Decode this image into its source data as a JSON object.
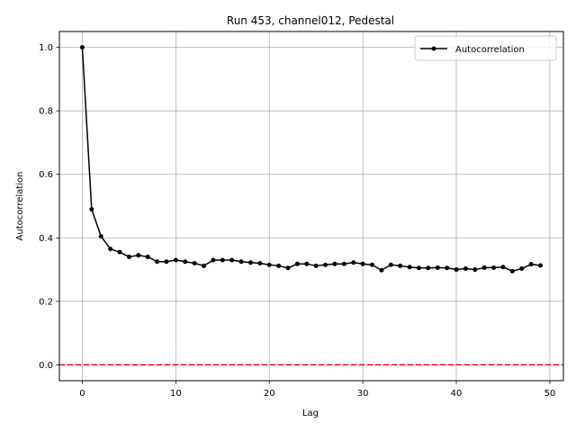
{
  "chart_data": {
    "type": "line",
    "title": "Run 453, channel012, Pedestal",
    "xlabel": "Lag",
    "ylabel": "Autocorrelation",
    "xlim": [
      -2.45,
      51.45
    ],
    "ylim": [
      -0.05,
      1.05
    ],
    "xticks": [
      0,
      10,
      20,
      30,
      40,
      50
    ],
    "yticks": [
      0.0,
      0.2,
      0.4,
      0.6,
      0.8,
      1.0
    ],
    "xtick_labels": [
      "0",
      "10",
      "20",
      "30",
      "40",
      "50"
    ],
    "ytick_labels": [
      "0.0",
      "0.2",
      "0.4",
      "0.6",
      "0.8",
      "1.0"
    ],
    "grid": true,
    "legend_position": "top-right",
    "series": [
      {
        "name": "Autocorrelation",
        "color": "#000000",
        "marker": "circle",
        "x": [
          0,
          1,
          2,
          3,
          4,
          5,
          6,
          7,
          8,
          9,
          10,
          11,
          12,
          13,
          14,
          15,
          16,
          17,
          18,
          19,
          20,
          21,
          22,
          23,
          24,
          25,
          26,
          27,
          28,
          29,
          30,
          31,
          32,
          33,
          34,
          35,
          36,
          37,
          38,
          39,
          40,
          41,
          42,
          43,
          44,
          45,
          46,
          47,
          48,
          49
        ],
        "y": [
          1.0,
          0.49,
          0.405,
          0.365,
          0.355,
          0.34,
          0.345,
          0.34,
          0.325,
          0.325,
          0.33,
          0.325,
          0.32,
          0.312,
          0.33,
          0.33,
          0.33,
          0.325,
          0.322,
          0.32,
          0.315,
          0.312,
          0.305,
          0.318,
          0.318,
          0.312,
          0.315,
          0.318,
          0.318,
          0.322,
          0.318,
          0.315,
          0.298,
          0.315,
          0.312,
          0.308,
          0.305,
          0.305,
          0.306,
          0.305,
          0.3,
          0.303,
          0.3,
          0.306,
          0.306,
          0.308,
          0.295,
          0.303,
          0.317,
          0.313
        ]
      }
    ],
    "reference_lines": [
      {
        "axis": "y",
        "value": 0.0,
        "color": "#ff0000",
        "style": "dashed"
      }
    ]
  }
}
